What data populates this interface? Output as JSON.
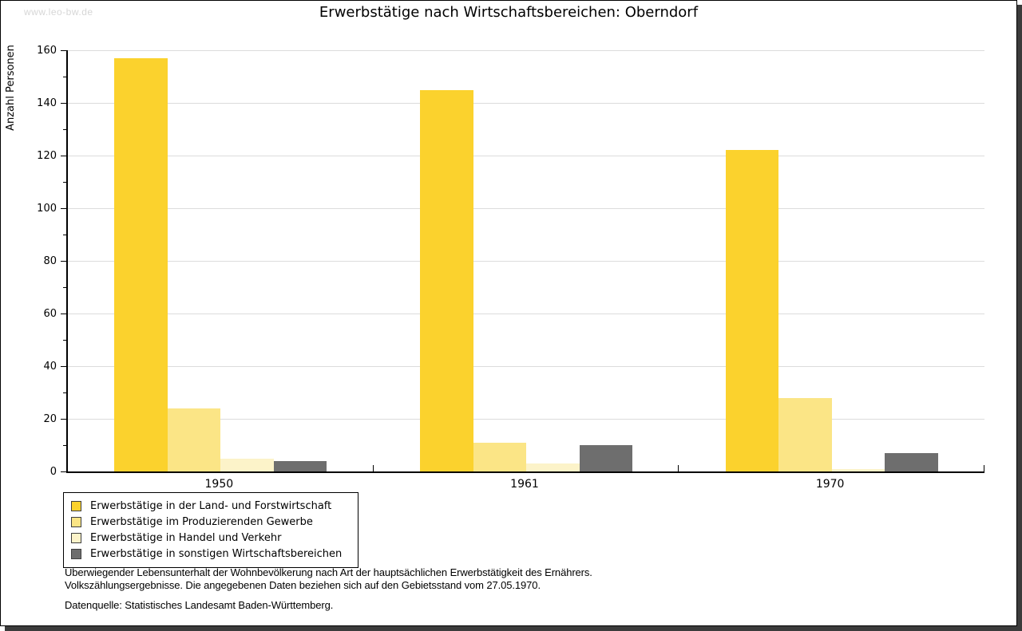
{
  "watermark": "www.leo-bw.de",
  "title": "Erwerbstätige nach Wirtschaftsbereichen: Oberndorf",
  "chart_data": {
    "type": "bar",
    "title": "Erwerbstätige nach Wirtschaftsbereichen: Oberndorf",
    "xlabel": "",
    "ylabel": "Anzahl Personen",
    "categories": [
      "1950",
      "1961",
      "1970"
    ],
    "series": [
      {
        "name": "Erwerbstätige in der Land- und Forstwirtschaft",
        "color": "#fbd22d",
        "values": [
          157,
          145,
          122
        ]
      },
      {
        "name": "Erwerbstätige im Produzierenden Gewerbe",
        "color": "#fbe586",
        "values": [
          24,
          11,
          28
        ]
      },
      {
        "name": "Erwerbstätige in Handel und Verkehr",
        "color": "#fcf3c9",
        "values": [
          5,
          3,
          1
        ]
      },
      {
        "name": "Erwerbstätige in sonstigen Wirtschaftsbereichen",
        "color": "#6e6e6e",
        "values": [
          4,
          10,
          7
        ]
      }
    ],
    "ylim": [
      0,
      160
    ],
    "ytick_step": 20,
    "yminor_step": 10,
    "grid": "horizontal",
    "gridline_color": "#dcdcdc",
    "legend_position": "bottom-left"
  },
  "footer": {
    "line1": "Überwiegender Lebensunterhalt der Wohnbevölkerung nach Art der hauptsächlichen Erwerbstätigkeit des Ernährers.",
    "line2": "Volkszählungsergebnisse. Die angegebenen Daten beziehen sich auf den Gebietsstand vom 27.05.1970.",
    "source": "Datenquelle: Statistisches Landesamt Baden-Württemberg."
  }
}
